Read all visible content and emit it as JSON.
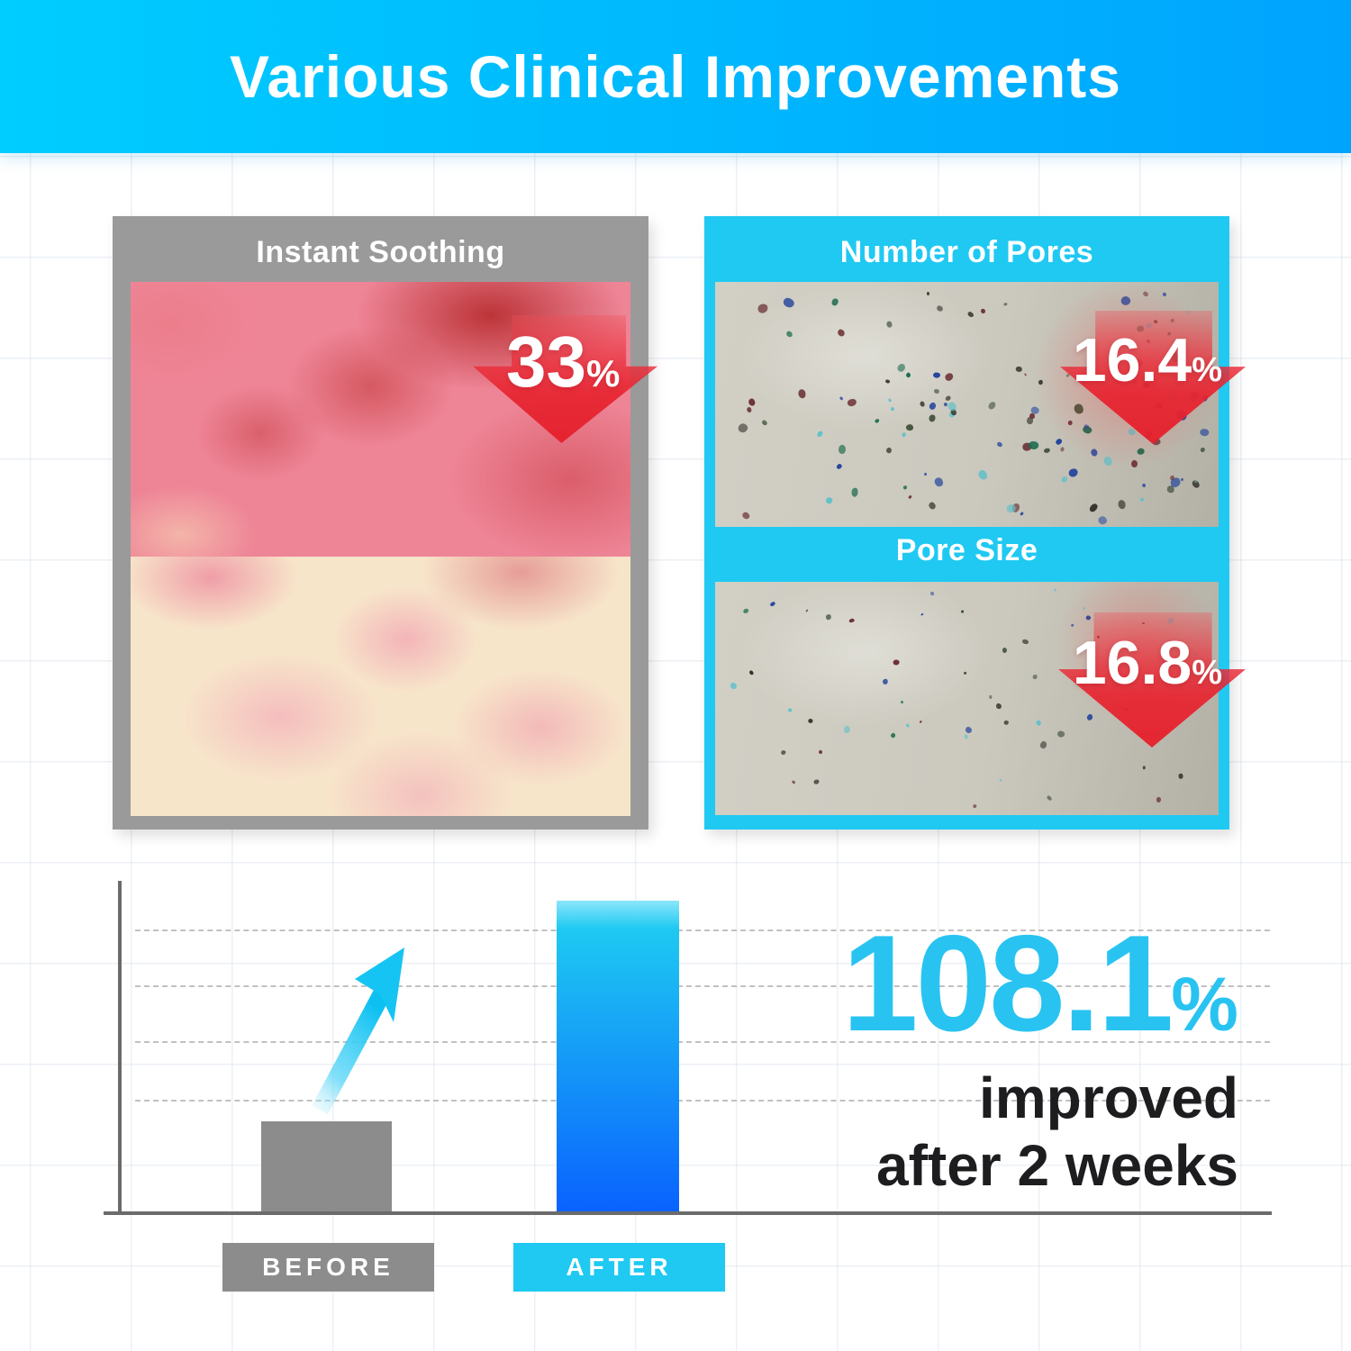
{
  "header": {
    "title": "Various Clinical Improvements"
  },
  "panels": {
    "instant_soothing": {
      "title": "Instant Soothing",
      "value": "33",
      "unit": "%"
    },
    "number_of_pores": {
      "title": "Number of Pores",
      "value": "16.4",
      "unit": "%"
    },
    "pore_size": {
      "title": "Pore Size",
      "value": "16.8",
      "unit": "%"
    }
  },
  "chart_data": {
    "type": "bar",
    "categories": [
      "BEFORE",
      "AFTER"
    ],
    "values": [
      100,
      345
    ],
    "value_scale": "relative bar height in px; y-axis has no tick labels",
    "title": "",
    "xlabel": "",
    "ylabel": "",
    "ylim": [
      0,
      362
    ],
    "gridlines": {
      "style": "dashed",
      "horizontal_count": 4
    },
    "legend_position": "bottom-chips",
    "annotation": {
      "value": "108.1",
      "unit": "%",
      "line1": "improved",
      "line2": "after 2 weeks"
    },
    "bar_colors": {
      "before": "#8c8c8c",
      "after_gradient_top": "#8ce6fb",
      "after_gradient_mid": "#1ec9f2",
      "after_gradient_bottom": "#0a62fe"
    }
  },
  "icons": {
    "down_arrow": "red-down-arrow",
    "trend_arrow": "cyan-trend-up-arrow"
  },
  "colors": {
    "header_gradient_left": "#00cdff",
    "header_gradient_right": "#00a4fd",
    "accent_cyan": "#1fc9f2",
    "card_gray": "#9a9a9a",
    "arrow_red": "#e9323e",
    "result_cyan": "#29c3f1",
    "text_dark": "#1d1d1f",
    "skin_tone": "#cfcdc2"
  },
  "pore_photo": {
    "speck_colors": [
      "#3a4a33",
      "#1c6b4e",
      "#23449c",
      "#6b3034",
      "#62c0c9",
      "#2b2b24"
    ]
  }
}
